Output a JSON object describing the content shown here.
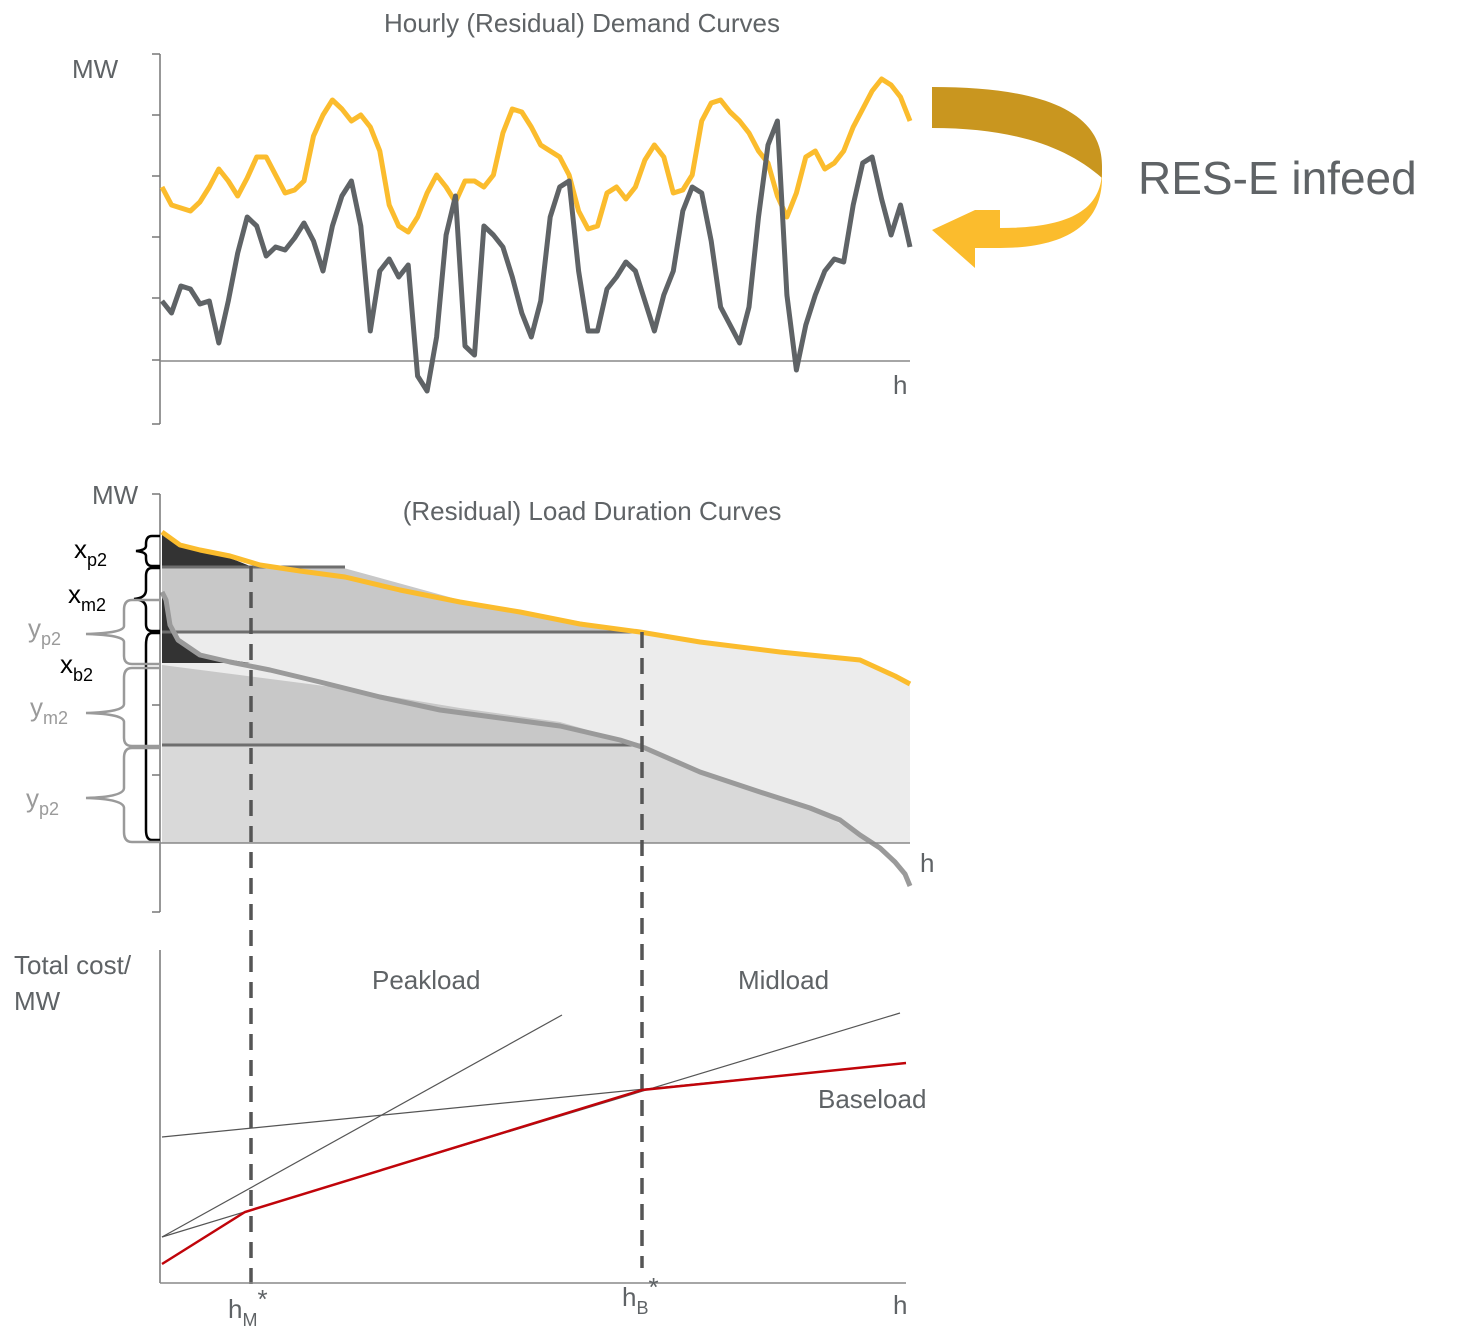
{
  "top_panel": {
    "title": "Hourly (Residual) Demand Curves",
    "y_label": "MW",
    "x_label": "h",
    "series": [
      {
        "role": "demand",
        "color": "#fbbc2d",
        "values": [
          0.58,
          0.52,
          0.51,
          0.5,
          0.53,
          0.58,
          0.64,
          0.6,
          0.55,
          0.61,
          0.68,
          0.68,
          0.62,
          0.56,
          0.57,
          0.6,
          0.75,
          0.82,
          0.87,
          0.84,
          0.8,
          0.82,
          0.78,
          0.7,
          0.52,
          0.45,
          0.43,
          0.48,
          0.56,
          0.62,
          0.58,
          0.53,
          0.6,
          0.6,
          0.58,
          0.62,
          0.76,
          0.84,
          0.83,
          0.78,
          0.72,
          0.7,
          0.68,
          0.62,
          0.5,
          0.44,
          0.45,
          0.56,
          0.58,
          0.54,
          0.58,
          0.67,
          0.72,
          0.68,
          0.56,
          0.57,
          0.62,
          0.8,
          0.86,
          0.87,
          0.83,
          0.8,
          0.76,
          0.7,
          0.66,
          0.55,
          0.48,
          0.56,
          0.68,
          0.7,
          0.64,
          0.66,
          0.7,
          0.78,
          0.84,
          0.9,
          0.94,
          0.92,
          0.88,
          0.8
        ]
      },
      {
        "role": "residual_demand",
        "color": "#5f6366",
        "values": [
          0.2,
          0.16,
          0.25,
          0.24,
          0.19,
          0.2,
          0.06,
          0.2,
          0.36,
          0.48,
          0.45,
          0.35,
          0.38,
          0.37,
          0.41,
          0.46,
          0.4,
          0.3,
          0.45,
          0.55,
          0.6,
          0.45,
          0.1,
          0.3,
          0.34,
          0.28,
          0.32,
          -0.05,
          -0.1,
          0.08,
          0.42,
          0.55,
          0.05,
          0.02,
          0.45,
          0.42,
          0.38,
          0.28,
          0.16,
          0.08,
          0.2,
          0.48,
          0.58,
          0.6,
          0.3,
          0.1,
          0.1,
          0.24,
          0.28,
          0.33,
          0.3,
          0.2,
          0.1,
          0.22,
          0.3,
          0.5,
          0.58,
          0.56,
          0.4,
          0.18,
          0.12,
          0.06,
          0.18,
          0.48,
          0.72,
          0.8,
          0.22,
          -0.03,
          0.12,
          0.22,
          0.3,
          0.34,
          0.33,
          0.52,
          0.66,
          0.68,
          0.54,
          0.42,
          0.52,
          0.38
        ]
      }
    ]
  },
  "res_annotation": {
    "label": "RES-E infeed",
    "color_dark": "#c9961f",
    "color_light": "#fbbc2d"
  },
  "middle_panel": {
    "title": "(Residual) Load Duration Curves",
    "y_label": "MW",
    "x_label": "h",
    "bracket_labels": [
      {
        "main": "x",
        "sub": "p2"
      },
      {
        "main": "x",
        "sub": "m2"
      },
      {
        "main": "y",
        "sub": "p2"
      },
      {
        "main": "x",
        "sub": "b2"
      },
      {
        "main": "y",
        "sub": "m2"
      },
      {
        "main": "y",
        "sub": "p2"
      }
    ],
    "colors": {
      "demand_curve": "#fbbc2d",
      "residual_curve": "#9a9a9a",
      "fill_light": "#ececec",
      "fill_mid": "#c8c8c8",
      "fill_base": "#d9d9d9",
      "fill_peak": "#333333"
    }
  },
  "bottom_panel": {
    "y_label_line1": "Total cost/",
    "y_label_line2": "MW",
    "x_label": "h",
    "regions": {
      "peak": "Peakload",
      "mid": "Midload",
      "base": "Baseload"
    },
    "markers": [
      {
        "main": "h",
        "sub": "M",
        "sup": "*"
      },
      {
        "main": "h",
        "sub": "B",
        "sup": "*"
      }
    ],
    "colors": {
      "envelope": "#c0040a",
      "cost_lines": "#555555"
    }
  }
}
